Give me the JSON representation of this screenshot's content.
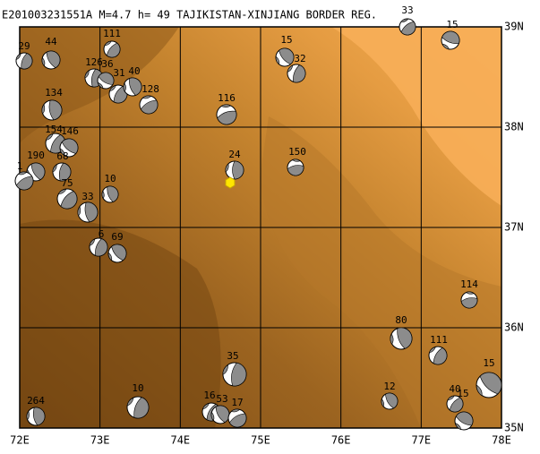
{
  "header": {
    "title": "E201003231551A M=4.7 h= 49 TAJIKISTAN-XINJIANG BORDER REG."
  },
  "x_labels": [
    "72E",
    "73E",
    "74E",
    "75E",
    "76E",
    "77E",
    "78E"
  ],
  "y_labels": [
    "35N",
    "36N",
    "37N",
    "38N",
    "39N"
  ],
  "events": [
    {
      "label": "29"
    },
    {
      "label": "44"
    },
    {
      "label": "111"
    },
    {
      "label": "126"
    },
    {
      "label": "36"
    },
    {
      "label": "31"
    },
    {
      "label": "40"
    },
    {
      "label": "128"
    },
    {
      "label": "134"
    },
    {
      "label": "116"
    },
    {
      "label": "15"
    },
    {
      "label": "32"
    },
    {
      "label": "33"
    },
    {
      "label": "15"
    },
    {
      "label": "24"
    },
    {
      "label": "150"
    },
    {
      "label": "154"
    },
    {
      "label": "146"
    },
    {
      "label": "68"
    },
    {
      "label": "190"
    },
    {
      "label": "1"
    },
    {
      "label": "10"
    },
    {
      "label": "75"
    },
    {
      "label": "33"
    },
    {
      "label": "6"
    },
    {
      "label": "69"
    },
    {
      "label": "114"
    },
    {
      "label": "80"
    },
    {
      "label": "111"
    },
    {
      "label": "15"
    },
    {
      "label": "35"
    },
    {
      "label": "12"
    },
    {
      "label": "40"
    },
    {
      "label": "15"
    },
    {
      "label": "10"
    },
    {
      "label": "264"
    },
    {
      "label": "16"
    },
    {
      "label": "53"
    },
    {
      "label": "17"
    }
  ]
}
